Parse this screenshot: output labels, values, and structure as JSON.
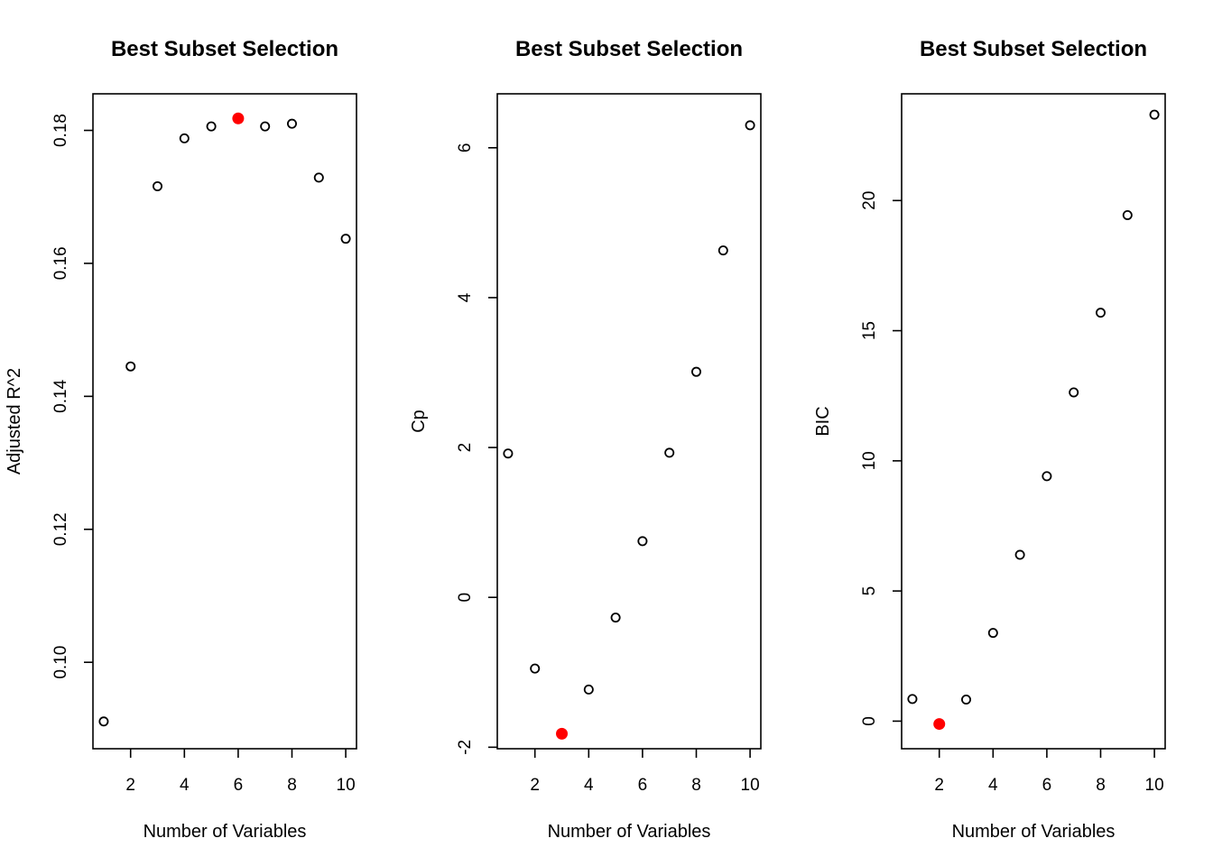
{
  "colors": {
    "points": "#000000",
    "highlight": "#ff0000",
    "background": "#ffffff"
  },
  "chart_data": [
    {
      "type": "scatter",
      "title": "Best Subset Selection",
      "xlabel": "Number of Variables",
      "ylabel": "Adjusted R^2",
      "xlim": [
        0.6,
        10.4
      ],
      "ylim": [
        0.087,
        0.1855
      ],
      "xticks": [
        2,
        4,
        6,
        8,
        10
      ],
      "yticks": [
        0.1,
        0.12,
        0.14,
        0.16,
        0.18
      ],
      "ytick_labels": [
        "0.10",
        "0.12",
        "0.14",
        "0.16",
        "0.18"
      ],
      "x": [
        1,
        2,
        3,
        4,
        5,
        6,
        7,
        8,
        9,
        10
      ],
      "y": [
        0.0911,
        0.1445,
        0.1716,
        0.1788,
        0.1806,
        0.1818,
        0.1806,
        0.181,
        0.1729,
        0.1637
      ],
      "highlight_index": 5,
      "grid": false
    },
    {
      "type": "scatter",
      "title": "Best Subset Selection",
      "xlabel": "Number of Variables",
      "ylabel": "Cp",
      "xlim": [
        0.6,
        10.4
      ],
      "ylim": [
        -2.02,
        6.72
      ],
      "xticks": [
        2,
        4,
        6,
        8,
        10
      ],
      "yticks": [
        -2,
        0,
        2,
        4,
        6
      ],
      "ytick_labels": [
        "-2",
        "0",
        "2",
        "4",
        "6"
      ],
      "x": [
        1,
        2,
        3,
        4,
        5,
        6,
        7,
        8,
        9,
        10
      ],
      "y": [
        1.92,
        -0.95,
        -1.82,
        -1.23,
        -0.27,
        0.75,
        1.93,
        3.01,
        4.63,
        6.3
      ],
      "highlight_index": 2,
      "grid": false
    },
    {
      "type": "scatter",
      "title": "Best Subset Selection",
      "xlabel": "Number of Variables",
      "ylabel": "BIC",
      "xlim": [
        0.6,
        10.4
      ],
      "ylim": [
        -1.06,
        24.1
      ],
      "xticks": [
        2,
        4,
        6,
        8,
        10
      ],
      "yticks": [
        0,
        5,
        10,
        15,
        20
      ],
      "ytick_labels": [
        "0",
        "5",
        "10",
        "15",
        "20"
      ],
      "x": [
        1,
        2,
        3,
        4,
        5,
        6,
        7,
        8,
        9,
        10
      ],
      "y": [
        0.85,
        -0.11,
        0.83,
        3.39,
        6.39,
        9.41,
        12.63,
        15.69,
        19.44,
        23.3
      ],
      "highlight_index": 1,
      "grid": false
    }
  ]
}
